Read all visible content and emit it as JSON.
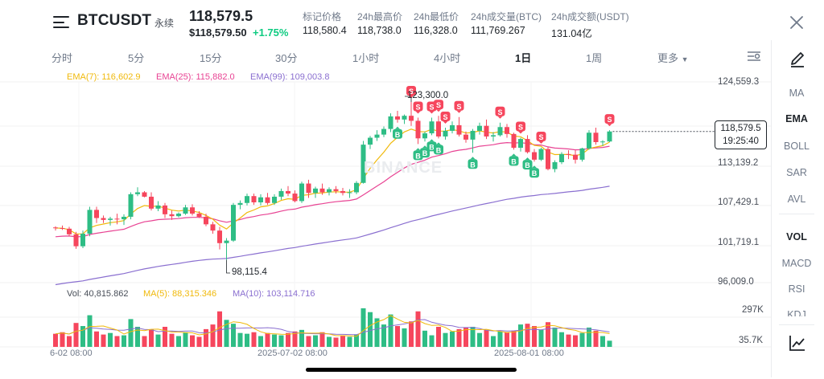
{
  "header": {
    "symbol": "BTCUSDT",
    "contract_type": "永续",
    "last_price": "118,579.5",
    "last_price_usd": "$118,579.50",
    "change_pct": "+1.75%",
    "stats": [
      {
        "label": "标记价格",
        "value": "118,580.4"
      },
      {
        "label": "24h最高价",
        "value": "118,738.0"
      },
      {
        "label": "24h最低价",
        "value": "116,328.0"
      },
      {
        "label": "24h成交量(BTC)",
        "value": "111,769.267"
      },
      {
        "label": "24h成交额(USDT)",
        "value": "131.04亿"
      }
    ]
  },
  "intervals": [
    "分时",
    "5分",
    "15分",
    "30分",
    "1小时",
    "4小时",
    "1日",
    "1周"
  ],
  "active_interval": "1日",
  "more_label": "更多",
  "sidebar": {
    "indicators_main": [
      "MA",
      "EMA",
      "BOLL",
      "SAR",
      "AVL"
    ],
    "indicators_sub": [
      "VOL",
      "MACD",
      "RSI",
      "KDJ"
    ],
    "active_main": "EMA",
    "active_sub": "VOL"
  },
  "legend": {
    "ema7": "EMA(7): 116,602.9",
    "ema25": "EMA(25): 115,882.0",
    "ema99": "EMA(99): 109,003.8",
    "vol": "Vol: 40,815.862",
    "ma5": "MA(5): 88,315.346",
    "ma10": "MA(10): 103,114.716"
  },
  "price_axis": [
    "124,559.3",
    "113,139.2",
    "107,429.1",
    "101,719.1",
    "96,009.0"
  ],
  "volume_axis": [
    "297K",
    "35.7K"
  ],
  "current_price_tag": {
    "price": "118,579.5",
    "countdown": "19:25:40"
  },
  "annotations": {
    "high": "123,300.0",
    "low": "98,115.4"
  },
  "x_axis": [
    "6-02 08:00",
    "2025-07-02 08:00",
    "2025-08-01 08:00"
  ],
  "watermark": "BINANCE",
  "colors": {
    "up": "#2ebd85",
    "down": "#f6465d",
    "ema7": "#f0b90b",
    "ema25": "#e84393",
    "ema99": "#8a6fd0",
    "ma5": "#f0b90b",
    "ma10": "#8a6fd0"
  },
  "chart_data": {
    "type": "candlestick",
    "ylim": [
      94500,
      126500
    ],
    "candles": [
      [
        103300,
        103500,
        102800,
        103200
      ],
      [
        103200,
        103600,
        102900,
        103100
      ],
      [
        103100,
        103400,
        101900,
        102200
      ],
      [
        102200,
        102600,
        99900,
        100300
      ],
      [
        100300,
        102800,
        100000,
        102300
      ],
      [
        102300,
        106600,
        101900,
        106100
      ],
      [
        106100,
        106600,
        104000,
        104800
      ],
      [
        104800,
        105200,
        104000,
        104500
      ],
      [
        104500,
        105000,
        103600,
        104700
      ],
      [
        104700,
        105500,
        103800,
        104600
      ],
      [
        104600,
        105400,
        103700,
        105000
      ],
      [
        105000,
        108900,
        104600,
        108600
      ],
      [
        108600,
        109700,
        108300,
        108900
      ],
      [
        108900,
        109100,
        108100,
        108200
      ],
      [
        108200,
        108900,
        106000,
        106300
      ],
      [
        106300,
        107500,
        105900,
        106800
      ],
      [
        106800,
        107200,
        104800,
        105400
      ],
      [
        105400,
        106000,
        104500,
        105100
      ],
      [
        105100,
        105700,
        104900,
        105500
      ],
      [
        105500,
        106900,
        105300,
        106500
      ],
      [
        106500,
        107000,
        105200,
        105500
      ],
      [
        105500,
        105900,
        104800,
        105000
      ],
      [
        105000,
        105500,
        103500,
        103800
      ],
      [
        103800,
        104200,
        102300,
        102800
      ],
      [
        102800,
        103400,
        99800,
        100800
      ],
      [
        100800,
        101600,
        98100,
        101200
      ],
      [
        101200,
        107200,
        101000,
        106900
      ],
      [
        106900,
        107600,
        106200,
        107200
      ],
      [
        107200,
        108700,
        106800,
        108300
      ],
      [
        108300,
        108700,
        106900,
        107300
      ],
      [
        107300,
        108600,
        106800,
        108100
      ],
      [
        108100,
        108800,
        106900,
        107200
      ],
      [
        107200,
        108600,
        106900,
        108200
      ],
      [
        108200,
        109500,
        107700,
        109100
      ],
      [
        109100,
        109900,
        108300,
        108700
      ],
      [
        108700,
        109200,
        107300,
        107500
      ],
      [
        107500,
        110600,
        107200,
        110300
      ],
      [
        110300,
        110900,
        108000,
        108800
      ],
      [
        108800,
        109800,
        108000,
        109500
      ],
      [
        109500,
        110300,
        108500,
        108900
      ],
      [
        108900,
        109700,
        108400,
        109400
      ],
      [
        109400,
        109900,
        108700,
        109100
      ],
      [
        109100,
        109600,
        108400,
        108800
      ],
      [
        108800,
        109400,
        108000,
        108900
      ],
      [
        108900,
        110700,
        108600,
        110400
      ],
      [
        110400,
        117100,
        110300,
        116500
      ],
      [
        116500,
        117900,
        115800,
        117600
      ],
      [
        117600,
        118800,
        117100,
        118100
      ],
      [
        118100,
        119400,
        117700,
        119000
      ],
      [
        119000,
        121500,
        118500,
        121000
      ],
      [
        121000,
        121900,
        120000,
        120500
      ],
      [
        120500,
        121300,
        119800,
        121100
      ],
      [
        121100,
        123300,
        119500,
        120300
      ],
      [
        120300,
        120800,
        116600,
        117500
      ],
      [
        117500,
        118600,
        117000,
        118300
      ],
      [
        118300,
        120800,
        118000,
        120200
      ],
      [
        120200,
        121100,
        117500,
        117800
      ],
      [
        117800,
        119200,
        117300,
        118700
      ],
      [
        118700,
        120200,
        118300,
        119600
      ],
      [
        119600,
        120900,
        117800,
        118100
      ],
      [
        118100,
        118600,
        116800,
        117300
      ],
      [
        117300,
        119000,
        115200,
        118700
      ],
      [
        118700,
        120000,
        118100,
        119500
      ],
      [
        119500,
        120500,
        117400,
        117800
      ],
      [
        117800,
        118500,
        117000,
        118000
      ],
      [
        118000,
        120000,
        117800,
        119300
      ],
      [
        119300,
        119800,
        117600,
        118200
      ],
      [
        118200,
        118400,
        115700,
        116000
      ],
      [
        116000,
        117600,
        115400,
        117400
      ],
      [
        117400,
        118000,
        115100,
        115300
      ],
      [
        115300,
        115800,
        113800,
        114100
      ],
      [
        114100,
        116000,
        113900,
        115800
      ],
      [
        115800,
        116100,
        112400,
        112600
      ],
      [
        112600,
        114000,
        112100,
        113700
      ],
      [
        113700,
        115300,
        113400,
        115000
      ],
      [
        115000,
        115600,
        114200,
        114900
      ],
      [
        114900,
        115600,
        113500,
        114100
      ],
      [
        114100,
        116000,
        113800,
        115900
      ],
      [
        115900,
        118800,
        115700,
        118400
      ],
      [
        118400,
        119200,
        116500,
        116900
      ],
      [
        116900,
        117200,
        116300,
        117000
      ],
      [
        117000,
        118800,
        116900,
        118600
      ]
    ],
    "volumes": [
      85,
      95,
      70,
      155,
      135,
      205,
      100,
      80,
      90,
      70,
      75,
      180,
      130,
      70,
      115,
      80,
      130,
      85,
      70,
      95,
      75,
      65,
      115,
      145,
      230,
      175,
      150,
      90,
      85,
      95,
      70,
      90,
      80,
      75,
      90,
      100,
      110,
      70,
      75,
      95,
      65,
      60,
      70,
      65,
      80,
      250,
      225,
      185,
      145,
      210,
      135,
      120,
      165,
      230,
      105,
      75,
      130,
      90,
      100,
      115,
      125,
      130,
      90,
      110,
      70,
      100,
      95,
      105,
      145,
      150,
      135,
      110,
      160,
      125,
      95,
      80,
      75,
      90,
      125,
      105,
      70,
      40
    ],
    "signals": [
      {
        "type": "S",
        "index": 52
      },
      {
        "type": "S",
        "index": 53
      },
      {
        "type": "S",
        "index": 55
      },
      {
        "type": "S",
        "index": 56
      },
      {
        "type": "S",
        "index": 57
      },
      {
        "type": "S",
        "index": 59
      },
      {
        "type": "S",
        "index": 65
      },
      {
        "type": "S",
        "index": 68
      },
      {
        "type": "S",
        "index": 71
      },
      {
        "type": "S",
        "index": 81
      },
      {
        "type": "B",
        "index": 50
      },
      {
        "type": "B",
        "index": 53
      },
      {
        "type": "B",
        "index": 54
      },
      {
        "type": "B",
        "index": 55
      },
      {
        "type": "B",
        "index": 56
      },
      {
        "type": "B",
        "index": 61
      },
      {
        "type": "B",
        "index": 67
      },
      {
        "type": "B",
        "index": 69
      },
      {
        "type": "B",
        "index": 70
      }
    ]
  }
}
